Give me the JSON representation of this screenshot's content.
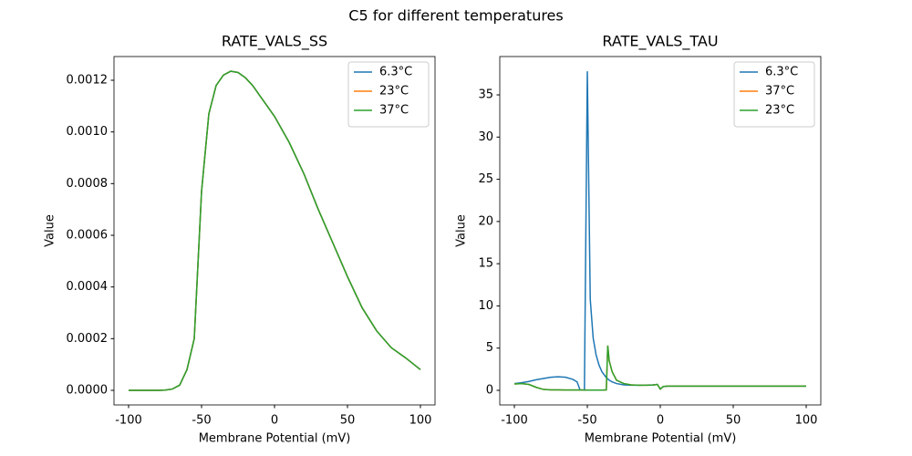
{
  "title": "C5 for different temperatures",
  "chart_data": [
    {
      "type": "line",
      "title": "RATE_VALS_SS",
      "xlabel": "Membrane Potential (mV)",
      "ylabel": "Value",
      "x": [
        -100,
        -95,
        -90,
        -85,
        -80,
        -75,
        -70,
        -65,
        -60,
        -55,
        -50,
        -45,
        -40,
        -35,
        -30,
        -25,
        -20,
        -15,
        -10,
        -5,
        0,
        10,
        20,
        30,
        40,
        50,
        60,
        70,
        80,
        90,
        100
      ],
      "series": [
        {
          "name": "6.3°C",
          "color": "#1f77b4",
          "values": [
            0,
            0,
            0,
            0,
            0,
            1e-06,
            5e-06,
            2e-05,
            8e-05,
            0.0002,
            0.00077,
            0.00107,
            0.00118,
            0.00122,
            0.001235,
            0.00123,
            0.00121,
            0.00118,
            0.00114,
            0.0011,
            0.00106,
            0.00096,
            0.00084,
            0.0007,
            0.00057,
            0.00044,
            0.00032,
            0.00023,
            0.000165,
            0.000125,
            8e-05
          ]
        },
        {
          "name": "23°C",
          "color": "#ff7f0e",
          "values": [
            0,
            0,
            0,
            0,
            0,
            1e-06,
            5e-06,
            2e-05,
            8e-05,
            0.0002,
            0.00077,
            0.00107,
            0.00118,
            0.00122,
            0.001235,
            0.00123,
            0.00121,
            0.00118,
            0.00114,
            0.0011,
            0.00106,
            0.00096,
            0.00084,
            0.0007,
            0.00057,
            0.00044,
            0.00032,
            0.00023,
            0.000165,
            0.000125,
            8e-05
          ]
        },
        {
          "name": "37°C",
          "color": "#2ca02c",
          "values": [
            0,
            0,
            0,
            0,
            0,
            1e-06,
            5e-06,
            2e-05,
            8e-05,
            0.0002,
            0.00077,
            0.00107,
            0.00118,
            0.00122,
            0.001235,
            0.00123,
            0.00121,
            0.00118,
            0.00114,
            0.0011,
            0.00106,
            0.00096,
            0.00084,
            0.0007,
            0.00057,
            0.00044,
            0.00032,
            0.00023,
            0.000165,
            0.000125,
            8e-05
          ]
        }
      ],
      "xlim": [
        -110,
        110
      ],
      "xticks": [
        -100,
        -50,
        0,
        50,
        100
      ],
      "ylim": [
        -5.65e-05,
        0.0012918
      ],
      "yticks": [
        {
          "value": 0,
          "label": "0.0000"
        },
        {
          "value": 0.0002,
          "label": "0.0002"
        },
        {
          "value": 0.0004,
          "label": "0.0004"
        },
        {
          "value": 0.0006,
          "label": "0.0006"
        },
        {
          "value": 0.0008,
          "label": "0.0008"
        },
        {
          "value": 0.001,
          "label": "0.0010"
        },
        {
          "value": 0.0012,
          "label": "0.0012"
        }
      ],
      "legend": "upper right"
    },
    {
      "type": "line",
      "title": "RATE_VALS_TAU",
      "xlabel": "Membrane Potential (mV)",
      "ylabel": "Value",
      "x": [
        -100,
        -95,
        -90,
        -85,
        -80,
        -75,
        -70,
        -65,
        -60,
        -57,
        -55,
        -52,
        -50,
        -48,
        -46,
        -44,
        -42,
        -40,
        -37,
        -36,
        -35,
        -33,
        -30,
        -25,
        -20,
        -15,
        -10,
        -5,
        -2,
        0,
        2,
        5,
        10,
        20,
        30,
        40,
        50,
        60,
        70,
        80,
        90,
        100
      ],
      "series": [
        {
          "name": "6.3°C",
          "color": "#1f77b4",
          "values": [
            0.8,
            0.9,
            1.05,
            1.25,
            1.4,
            1.55,
            1.6,
            1.55,
            1.3,
            1.0,
            0.05,
            0.02,
            37.8,
            10.8,
            6.2,
            4.2,
            3.0,
            2.2,
            1.5,
            1.35,
            1.2,
            1.0,
            0.8,
            0.65,
            0.6,
            0.6,
            0.62,
            0.65,
            0.7,
            0.15,
            0.45,
            0.5,
            0.5,
            0.5,
            0.5,
            0.5,
            0.5,
            0.5,
            0.5,
            0.5,
            0.5,
            0.5
          ]
        },
        {
          "name": "37°C",
          "color": "#ff7f0e",
          "values": [
            0.75,
            0.8,
            0.7,
            0.35,
            0.1,
            0.05,
            0.05,
            0.04,
            0.04,
            0.04,
            0.04,
            0.04,
            0.03,
            0.03,
            0.03,
            0.03,
            0.03,
            0.03,
            0.05,
            5.3,
            3.5,
            2.2,
            1.2,
            0.8,
            0.65,
            0.6,
            0.6,
            0.62,
            0.7,
            0.15,
            0.45,
            0.5,
            0.5,
            0.5,
            0.5,
            0.5,
            0.5,
            0.5,
            0.5,
            0.5,
            0.5,
            0.5
          ]
        },
        {
          "name": "23°C",
          "color": "#2ca02c",
          "values": [
            0.75,
            0.8,
            0.7,
            0.35,
            0.1,
            0.05,
            0.05,
            0.04,
            0.04,
            0.04,
            0.04,
            0.04,
            0.03,
            0.03,
            0.03,
            0.03,
            0.03,
            0.03,
            0.05,
            5.3,
            3.5,
            2.2,
            1.2,
            0.8,
            0.65,
            0.6,
            0.6,
            0.62,
            0.7,
            0.15,
            0.45,
            0.5,
            0.5,
            0.5,
            0.5,
            0.5,
            0.5,
            0.5,
            0.5,
            0.5,
            0.5,
            0.5
          ]
        }
      ],
      "xlim": [
        -110,
        110
      ],
      "xticks": [
        -100,
        -50,
        0,
        50,
        100
      ],
      "ylim": [
        -1.73,
        39.54
      ],
      "yticks": [
        0,
        5,
        10,
        15,
        20,
        25,
        30,
        35
      ],
      "legend": "upper right"
    }
  ]
}
